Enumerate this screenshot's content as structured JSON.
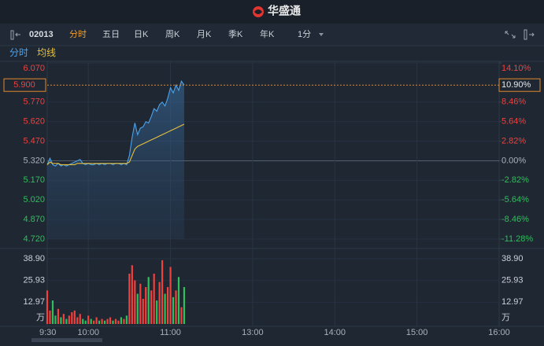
{
  "app": {
    "brand": "华盛通",
    "code": "02013",
    "tabs": [
      "分时",
      "五日",
      "日K",
      "周K",
      "月K",
      "季K",
      "年K"
    ],
    "interval": "1分"
  },
  "chart_data": {
    "type": "line",
    "x": [
      "9:30",
      "9:32",
      "9:34",
      "9:36",
      "9:38",
      "9:40",
      "9:42",
      "9:44",
      "9:46",
      "9:48",
      "9:50",
      "9:52",
      "9:54",
      "9:56",
      "9:58",
      "10:00",
      "10:02",
      "10:04",
      "10:06",
      "10:08",
      "10:10",
      "10:12",
      "10:14",
      "10:16",
      "10:18",
      "10:20",
      "10:22",
      "10:24",
      "10:26",
      "10:28",
      "10:30",
      "10:32",
      "10:34",
      "10:36",
      "10:38",
      "10:40",
      "10:42",
      "10:44",
      "10:46",
      "10:48",
      "10:50",
      "10:52",
      "10:54",
      "10:56",
      "10:58",
      "11:00",
      "11:02",
      "11:04",
      "11:06",
      "11:08",
      "11:10"
    ],
    "series": [
      {
        "name": "分时",
        "color": "#4da3ea",
        "values": [
          5.29,
          5.34,
          5.29,
          5.28,
          5.3,
          5.28,
          5.29,
          5.28,
          5.29,
          5.3,
          5.31,
          5.32,
          5.33,
          5.3,
          5.29,
          5.3,
          5.29,
          5.29,
          5.3,
          5.29,
          5.3,
          5.29,
          5.3,
          5.3,
          5.29,
          5.3,
          5.3,
          5.29,
          5.3,
          5.29,
          5.36,
          5.5,
          5.61,
          5.52,
          5.57,
          5.58,
          5.62,
          5.61,
          5.66,
          5.72,
          5.7,
          5.75,
          5.77,
          5.74,
          5.8,
          5.88,
          5.84,
          5.9,
          5.86,
          5.93,
          5.9
        ]
      },
      {
        "name": "均线",
        "color": "#e6c03c",
        "values": [
          5.29,
          5.31,
          5.3,
          5.3,
          5.3,
          5.29,
          5.29,
          5.29,
          5.29,
          5.29,
          5.29,
          5.3,
          5.3,
          5.3,
          5.3,
          5.3,
          5.3,
          5.3,
          5.3,
          5.3,
          5.3,
          5.3,
          5.3,
          5.3,
          5.3,
          5.3,
          5.3,
          5.3,
          5.3,
          5.3,
          5.31,
          5.36,
          5.41,
          5.43,
          5.44,
          5.45,
          5.46,
          5.47,
          5.48,
          5.49,
          5.5,
          5.51,
          5.52,
          5.53,
          5.54,
          5.55,
          5.56,
          5.57,
          5.58,
          5.59,
          5.6
        ]
      }
    ],
    "ylim": [
      4.72,
      6.07
    ],
    "yticks": [
      {
        "value": 6.07,
        "label": "6.070"
      },
      {
        "value": 5.77,
        "label": "5.770"
      },
      {
        "value": 5.62,
        "label": "5.620"
      },
      {
        "value": 5.47,
        "label": "5.470"
      },
      {
        "value": 5.32,
        "label": "5.320"
      },
      {
        "value": 5.17,
        "label": "5.170"
      },
      {
        "value": 5.02,
        "label": "5.020"
      },
      {
        "value": 4.87,
        "label": "4.870"
      },
      {
        "value": 4.72,
        "label": "4.720"
      }
    ],
    "y2lim": [
      -11.28,
      14.1
    ],
    "y2ticks": [
      {
        "value": 14.1,
        "label": "14.10%"
      },
      {
        "value": 8.46,
        "label": "8.46%"
      },
      {
        "value": 5.64,
        "label": "5.64%"
      },
      {
        "value": 2.82,
        "label": "2.82%"
      },
      {
        "value": 0,
        "label": "0.00%"
      },
      {
        "value": -2.82,
        "label": "-2.82%"
      },
      {
        "value": -5.64,
        "label": "-5.64%"
      },
      {
        "value": -8.46,
        "label": "-8.46%"
      },
      {
        "value": -11.28,
        "label": "-11.28%"
      }
    ],
    "last_price": {
      "value": 5.9,
      "label": "5.900"
    },
    "last_change": {
      "value": 10.9,
      "label": "10.90%"
    },
    "xticks": [
      "9:30",
      "10:00",
      "11:00",
      "13:00",
      "14:00",
      "15:00",
      "16:00"
    ],
    "up_color": "#f0413d",
    "down_color": "#2fbf5b",
    "volume": {
      "unit": "万",
      "ylim": [
        0,
        38.9
      ],
      "yticks": [
        {
          "value": 38.9,
          "label": "38.90"
        },
        {
          "value": 25.93,
          "label": "25.93"
        },
        {
          "value": 12.97,
          "label": "12.97"
        }
      ],
      "values": [
        20,
        8,
        14,
        5,
        9,
        4,
        6,
        3,
        5,
        7,
        8,
        4,
        6,
        3,
        2,
        5,
        3,
        2,
        4,
        2,
        3,
        2,
        3,
        4,
        2,
        3,
        2,
        4,
        3,
        5,
        30,
        35,
        26,
        18,
        24,
        15,
        22,
        28,
        20,
        30,
        14,
        25,
        38,
        18,
        22,
        34,
        16,
        20,
        28,
        10,
        22
      ]
    }
  }
}
